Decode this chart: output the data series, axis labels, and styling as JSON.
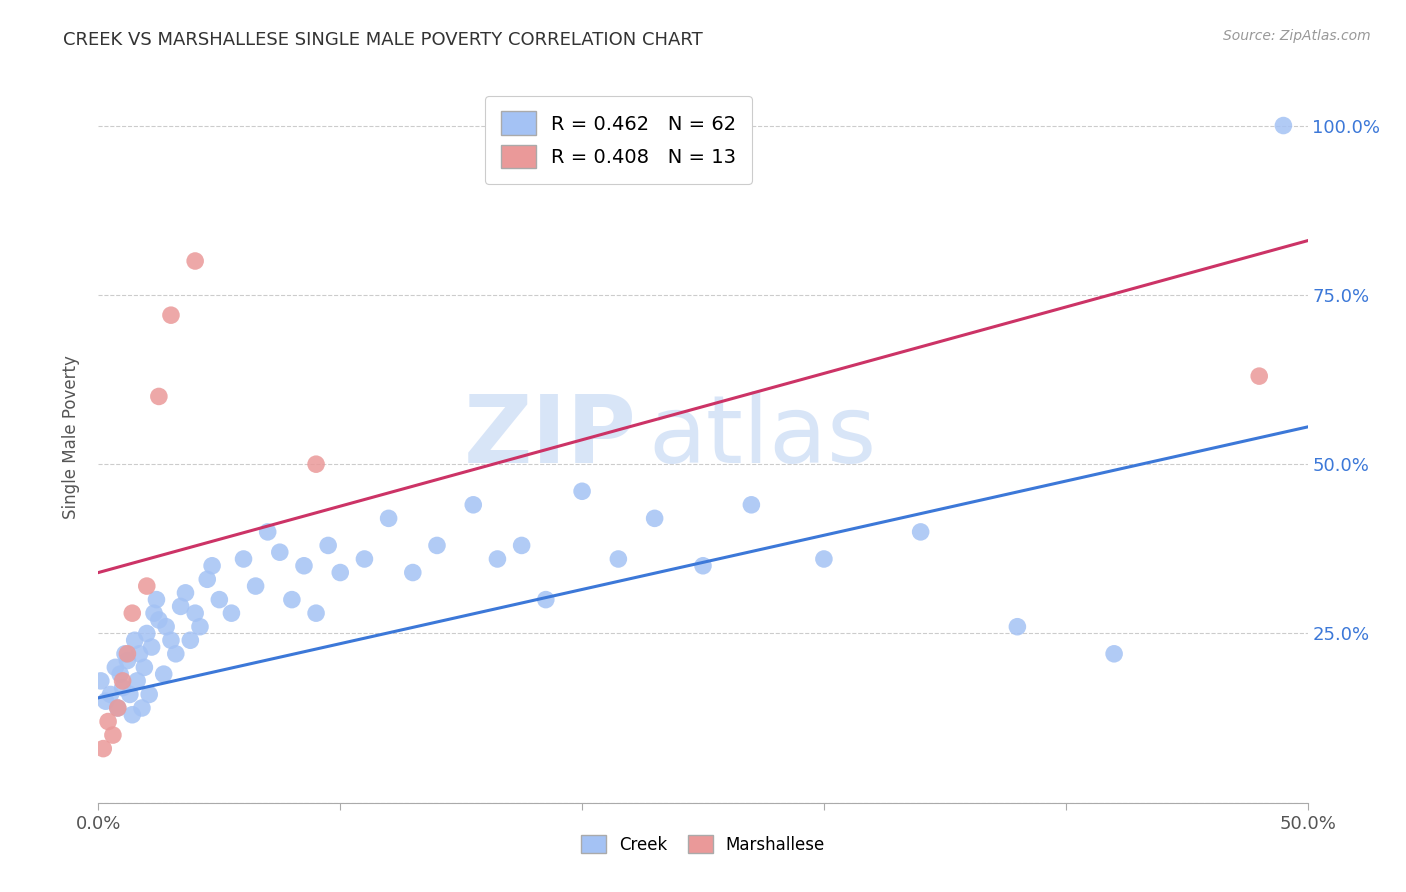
{
  "title": "CREEK VS MARSHALLESE SINGLE MALE POVERTY CORRELATION CHART",
  "source": "Source: ZipAtlas.com",
  "ylabel": "Single Male Poverty",
  "right_yticks": [
    "100.0%",
    "75.0%",
    "50.0%",
    "25.0%"
  ],
  "right_ytick_vals": [
    1.0,
    0.75,
    0.5,
    0.25
  ],
  "xlim": [
    0.0,
    0.5
  ],
  "ylim": [
    0.0,
    1.08
  ],
  "creek_R": 0.462,
  "creek_N": 62,
  "marshallese_R": 0.408,
  "marshallese_N": 13,
  "creek_color": "#a4c2f4",
  "marshallese_color": "#ea9999",
  "creek_line_color": "#3c78d8",
  "marshallese_line_color": "#cc3366",
  "background_color": "#ffffff",
  "watermark_zip": "ZIP",
  "watermark_atlas": "atlas",
  "creek_x": [
    0.001,
    0.003,
    0.005,
    0.007,
    0.008,
    0.009,
    0.01,
    0.011,
    0.012,
    0.013,
    0.014,
    0.015,
    0.016,
    0.017,
    0.018,
    0.019,
    0.02,
    0.021,
    0.022,
    0.023,
    0.024,
    0.025,
    0.027,
    0.028,
    0.03,
    0.032,
    0.034,
    0.036,
    0.038,
    0.04,
    0.042,
    0.045,
    0.047,
    0.05,
    0.055,
    0.06,
    0.065,
    0.07,
    0.075,
    0.08,
    0.085,
    0.09,
    0.095,
    0.1,
    0.11,
    0.12,
    0.13,
    0.14,
    0.155,
    0.165,
    0.175,
    0.185,
    0.2,
    0.215,
    0.23,
    0.25,
    0.27,
    0.3,
    0.34,
    0.38,
    0.42,
    0.49
  ],
  "creek_y": [
    0.18,
    0.15,
    0.16,
    0.2,
    0.14,
    0.19,
    0.17,
    0.22,
    0.21,
    0.16,
    0.13,
    0.24,
    0.18,
    0.22,
    0.14,
    0.2,
    0.25,
    0.16,
    0.23,
    0.28,
    0.3,
    0.27,
    0.19,
    0.26,
    0.24,
    0.22,
    0.29,
    0.31,
    0.24,
    0.28,
    0.26,
    0.33,
    0.35,
    0.3,
    0.28,
    0.36,
    0.32,
    0.4,
    0.37,
    0.3,
    0.35,
    0.28,
    0.38,
    0.34,
    0.36,
    0.42,
    0.34,
    0.38,
    0.44,
    0.36,
    0.38,
    0.3,
    0.46,
    0.36,
    0.42,
    0.35,
    0.44,
    0.36,
    0.4,
    0.26,
    0.22,
    1.0
  ],
  "marshallese_x": [
    0.002,
    0.004,
    0.006,
    0.008,
    0.01,
    0.012,
    0.014,
    0.02,
    0.025,
    0.03,
    0.04,
    0.09,
    0.48
  ],
  "marshallese_y": [
    0.08,
    0.12,
    0.1,
    0.14,
    0.18,
    0.22,
    0.28,
    0.32,
    0.6,
    0.72,
    0.8,
    0.5,
    0.63
  ],
  "creek_trend_x": [
    0.0,
    0.5
  ],
  "creek_trend_y": [
    0.155,
    0.555
  ],
  "marshallese_trend_x": [
    0.0,
    0.5
  ],
  "marshallese_trend_y": [
    0.34,
    0.83
  ]
}
